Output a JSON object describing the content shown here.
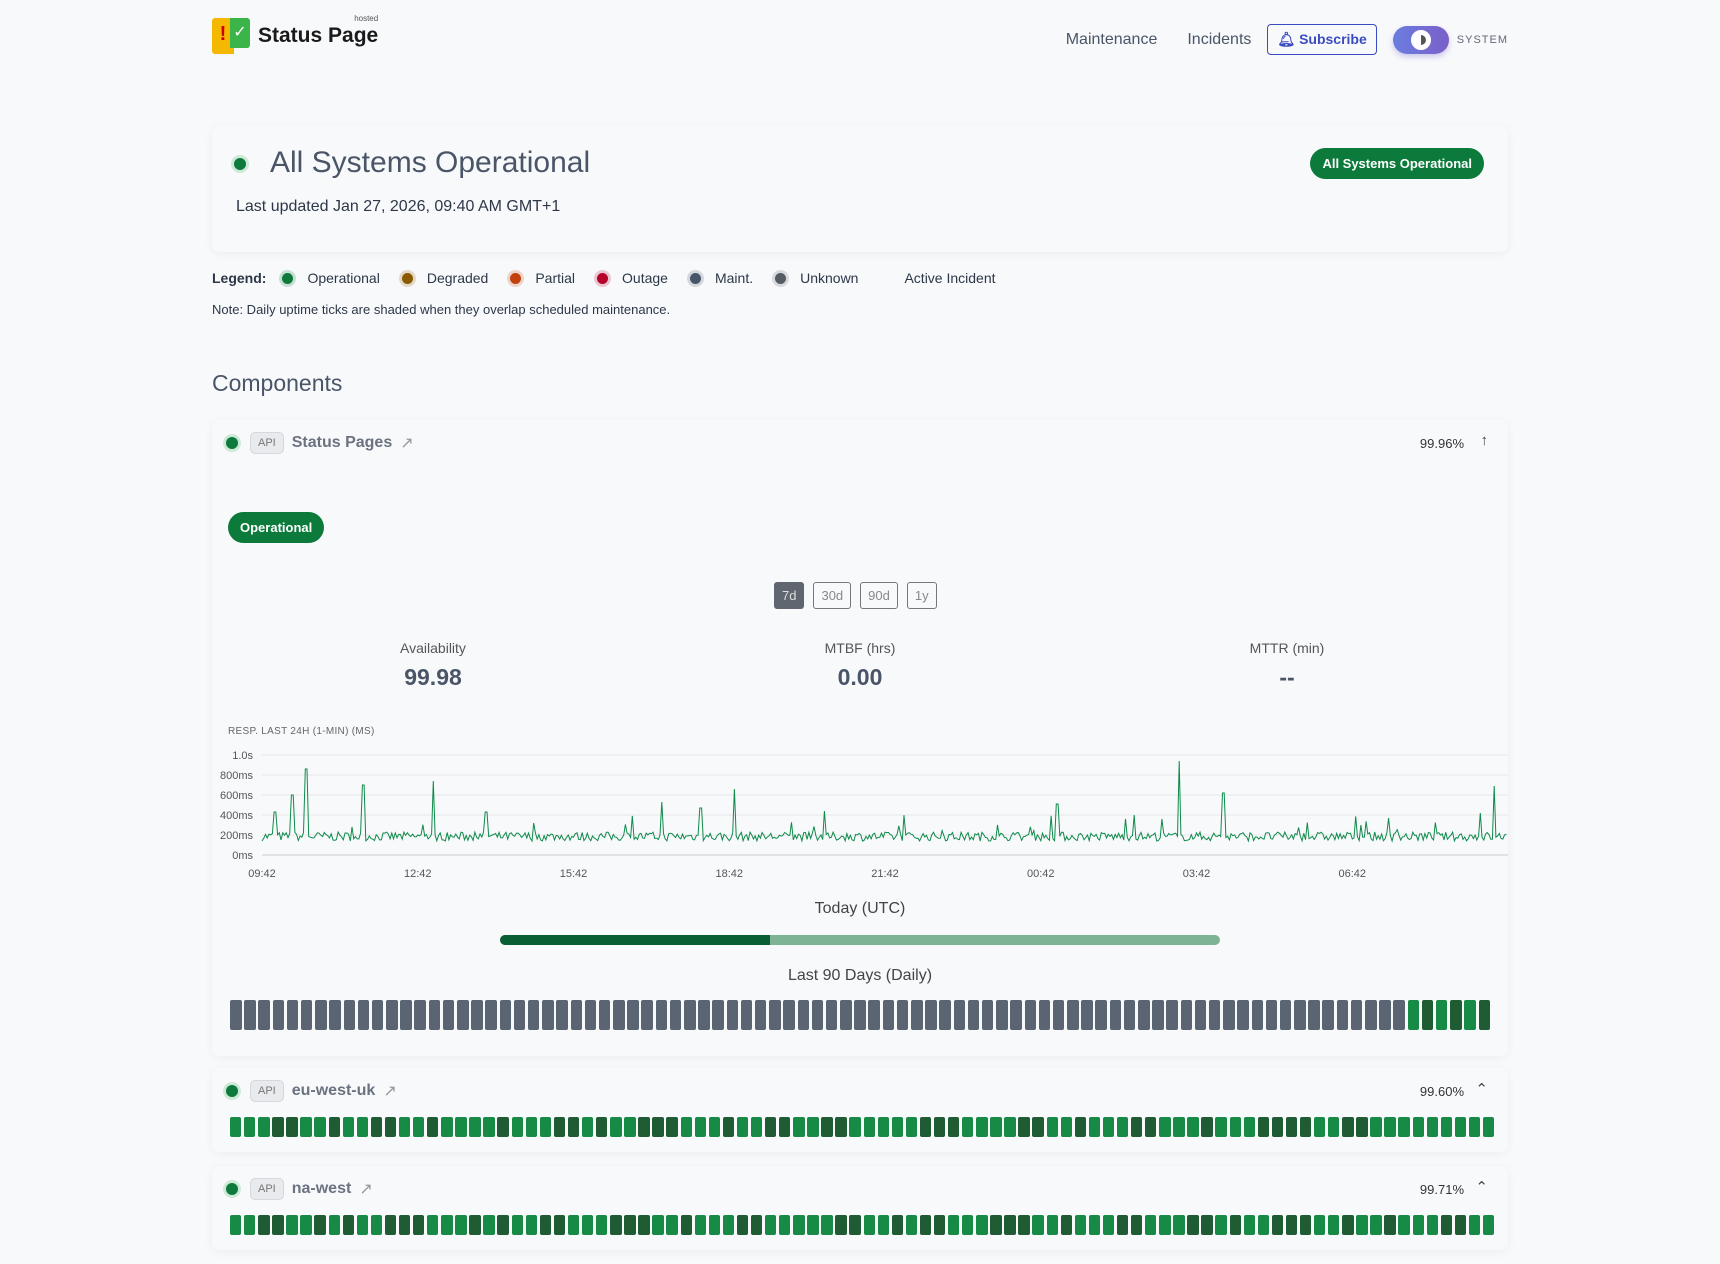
{
  "header": {
    "logo_text": "Status Page",
    "logo_hosted": "hosted",
    "nav": [
      "Maintenance",
      "Incidents"
    ],
    "subscribe": "Subscribe",
    "theme": "SYSTEM"
  },
  "hero": {
    "title": "All Systems Operational",
    "updated": "Last updated Jan 27, 2026, 09:40 AM GMT+1",
    "badge": "All Systems Operational"
  },
  "legend": {
    "label": "Legend:",
    "items": [
      {
        "label": "Operational",
        "color": "#0b7a3a"
      },
      {
        "label": "Degraded",
        "color": "#8a5a00"
      },
      {
        "label": "Partial",
        "color": "#c2410c"
      },
      {
        "label": "Outage",
        "color": "#b5002a"
      },
      {
        "label": "Maint.",
        "color": "#475569"
      },
      {
        "label": "Unknown",
        "color": "#555b63"
      },
      {
        "label": "Active Incident",
        "color": ""
      }
    ],
    "note": "Note: Daily uptime ticks are shaded when they overlap scheduled maintenance."
  },
  "components_title": "Components",
  "components": [
    {
      "tag": "API",
      "name": "Status Pages",
      "uptime": "99.96%",
      "status": "Operational",
      "expanded": true,
      "ranges": [
        "7d",
        "30d",
        "90d",
        "1y"
      ],
      "selected_range": "7d",
      "stats": [
        {
          "label": "Availability",
          "value": "99.98"
        },
        {
          "label": "MTBF (hrs)",
          "value": "0.00"
        },
        {
          "label": "MTTR (min)",
          "value": "--"
        }
      ],
      "today_label": "Today (UTC)",
      "today_progress": 0.375,
      "daily_label": "Last 90 Days (Daily)",
      "daily": "uuuuuuuuuuuuuuuuuuuuuuuuuuuuuuuuuuuuuuuuuuuuuuuuuuuuuuuuuuuuuuuuuuuuuuuuuuuuuuuuuuuababab"
    },
    {
      "tag": "API",
      "name": "eu-west-uk",
      "uptime": "99.60%",
      "expanded": false,
      "daily": "aaabbaabaabbaabaaaabaaabbabaabbbaaabaabbaabbaaaaabbbaaaabbaabaaabbaaabaaabbbbaabbaaaaaaaaa"
    },
    {
      "tag": "API",
      "name": "na-west",
      "uptime": "99.71%",
      "expanded": false,
      "daily": "aabbaababaabbbaaababaabbaaabbbaabaaabbaaaaabbaababbaaabbbaabaaabbaaabbabaabbbaabaabaaabbaa"
    }
  ],
  "tick_colors": {
    "u": "#5b6472",
    "a": "#178a45",
    "b": "#1f5c33"
  },
  "chart_data": {
    "type": "line",
    "title": "RESP. LAST 24H (1-MIN) (MS)",
    "x_ticks": [
      "09:42",
      "12:42",
      "15:42",
      "18:42",
      "21:42",
      "00:42",
      "03:42",
      "06:42"
    ],
    "y_ticks": [
      "0ms",
      "200ms",
      "400ms",
      "600ms",
      "800ms",
      "1.0s"
    ],
    "ylim": [
      0,
      1000
    ],
    "grid": true,
    "color": "#0f8a4a",
    "baseline_ms": [
      140,
      230
    ],
    "spikes": [
      {
        "t": "09:57",
        "ms": 430
      },
      {
        "t": "10:17",
        "ms": 600
      },
      {
        "t": "10:33",
        "ms": 860
      },
      {
        "t": "11:39",
        "ms": 700
      },
      {
        "t": "13:00",
        "ms": 740
      },
      {
        "t": "14:01",
        "ms": 430
      },
      {
        "t": "17:24",
        "ms": 530
      },
      {
        "t": "18:09",
        "ms": 470
      },
      {
        "t": "18:48",
        "ms": 660
      },
      {
        "t": "20:32",
        "ms": 440
      },
      {
        "t": "01:01",
        "ms": 510
      },
      {
        "t": "02:30",
        "ms": 400
      },
      {
        "t": "03:22",
        "ms": 940
      },
      {
        "t": "04:13",
        "ms": 620
      },
      {
        "t": "09:10",
        "ms": 420
      },
      {
        "t": "09:26",
        "ms": 690
      }
    ]
  }
}
